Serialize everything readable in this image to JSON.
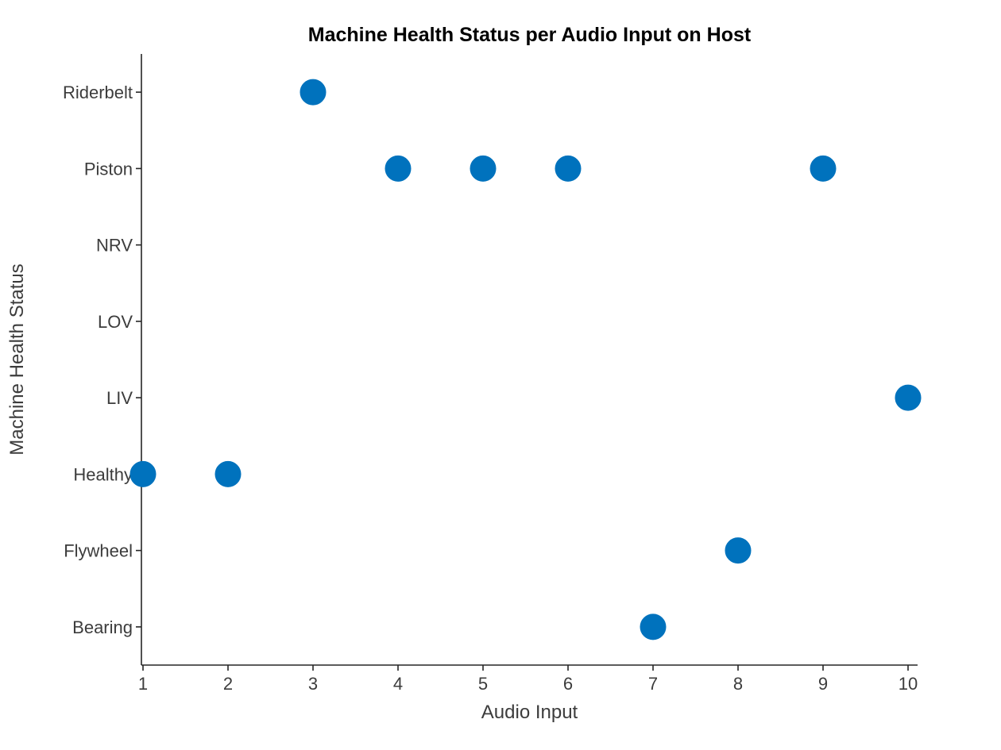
{
  "chart_data": {
    "type": "scatter",
    "title": "Machine Health Status per Audio Input on Host",
    "xlabel": "Audio Input",
    "ylabel": "Machine Health Status",
    "x_ticks": [
      1,
      2,
      3,
      4,
      5,
      6,
      7,
      8,
      9,
      10
    ],
    "xlim": [
      1,
      10
    ],
    "y_categories_bottom_to_top": [
      "Bearing",
      "Flywheel",
      "Healthy",
      "LIV",
      "LOV",
      "NRV",
      "Piston",
      "Riderbelt"
    ],
    "points": [
      {
        "x": 1,
        "y": "Healthy"
      },
      {
        "x": 2,
        "y": "Healthy"
      },
      {
        "x": 3,
        "y": "Riderbelt"
      },
      {
        "x": 4,
        "y": "Piston"
      },
      {
        "x": 5,
        "y": "Piston"
      },
      {
        "x": 6,
        "y": "Piston"
      },
      {
        "x": 7,
        "y": "Bearing"
      },
      {
        "x": 8,
        "y": "Flywheel"
      },
      {
        "x": 9,
        "y": "Piston"
      },
      {
        "x": 10,
        "y": "LIV"
      }
    ],
    "marker_color": "#0072BD",
    "grid": false,
    "legend": "none"
  }
}
